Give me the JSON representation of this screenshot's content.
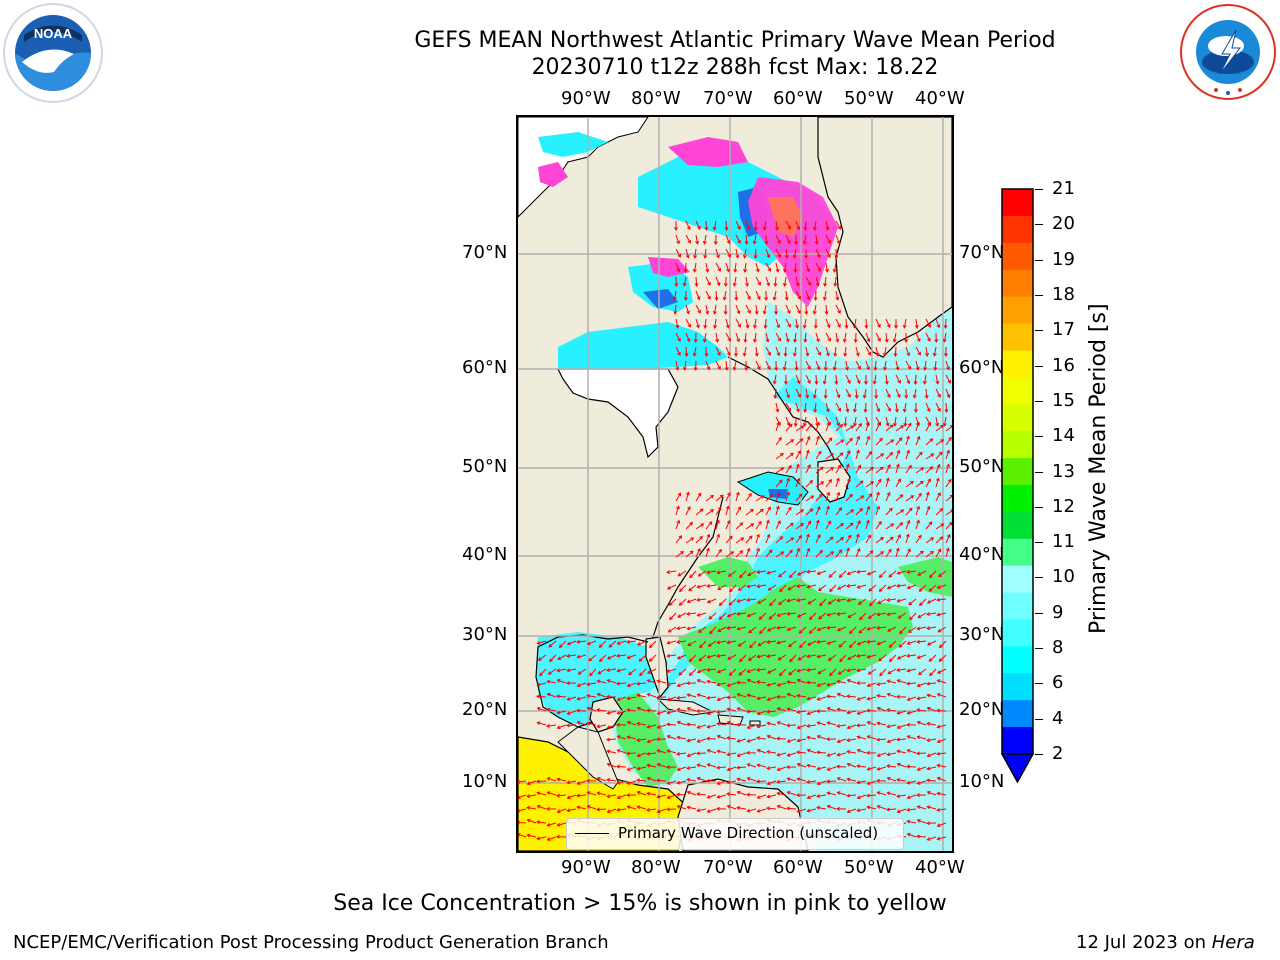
{
  "header": {
    "title_line1": "GEFS MEAN Northwest Atlantic Primary Wave Mean Period",
    "title_line2": "20230710 t12z 288h fcst   Max: 18.22"
  },
  "logos": {
    "noaa_text": "NOAA",
    "noaa_ring": "NATIONAL OCEANIC AND ATMOSPHERIC ADMINISTRATION · U.S. DEPARTMENT OF COMMERCE",
    "nws_ring": "NATIONAL WEATHER SERVICE"
  },
  "map": {
    "lon_labels": [
      "90°W",
      "80°W",
      "70°W",
      "60°W",
      "50°W",
      "40°W"
    ],
    "lat_labels": [
      "70°N",
      "60°N",
      "50°N",
      "40°N",
      "30°N",
      "20°N",
      "10°N"
    ],
    "legend_label": "Primary Wave Direction (unscaled)",
    "colors": {
      "land": "#efecdc",
      "ocean_light": "#a9f5f5",
      "ocean_cyan": "#28f1ff",
      "green": "#55ee66",
      "yellow": "#fff200",
      "pink": "#ff44d6",
      "arrow": "#ff0000",
      "grid": "#b0b0b0"
    }
  },
  "colorbar": {
    "label": "Primary Wave Mean Period [s]",
    "ticks": [
      "21",
      "20",
      "19",
      "18",
      "17",
      "16",
      "15",
      "14",
      "13",
      "12",
      "11",
      "10",
      "9",
      "8",
      "6",
      "4",
      "2"
    ],
    "colors_top_down": [
      "#ff0000",
      "#ff3300",
      "#ff5a00",
      "#ff8000",
      "#ffa000",
      "#ffc000",
      "#fff000",
      "#f0ff00",
      "#d8ff00",
      "#b8ff00",
      "#5cf000",
      "#00ee00",
      "#00dd33",
      "#44ff88",
      "#a0ffff",
      "#70ffff",
      "#44ffff",
      "#00ffff",
      "#00ddff",
      "#0088ff",
      "#0000ff"
    ]
  },
  "footer": {
    "sea_ice_note": "Sea Ice Concentration > 15% is shown in pink to yellow",
    "branch": "NCEP/EMC/Verification Post Processing Product Generation Branch",
    "date": "12 Jul 2023 on ",
    "machine": "Hera"
  }
}
